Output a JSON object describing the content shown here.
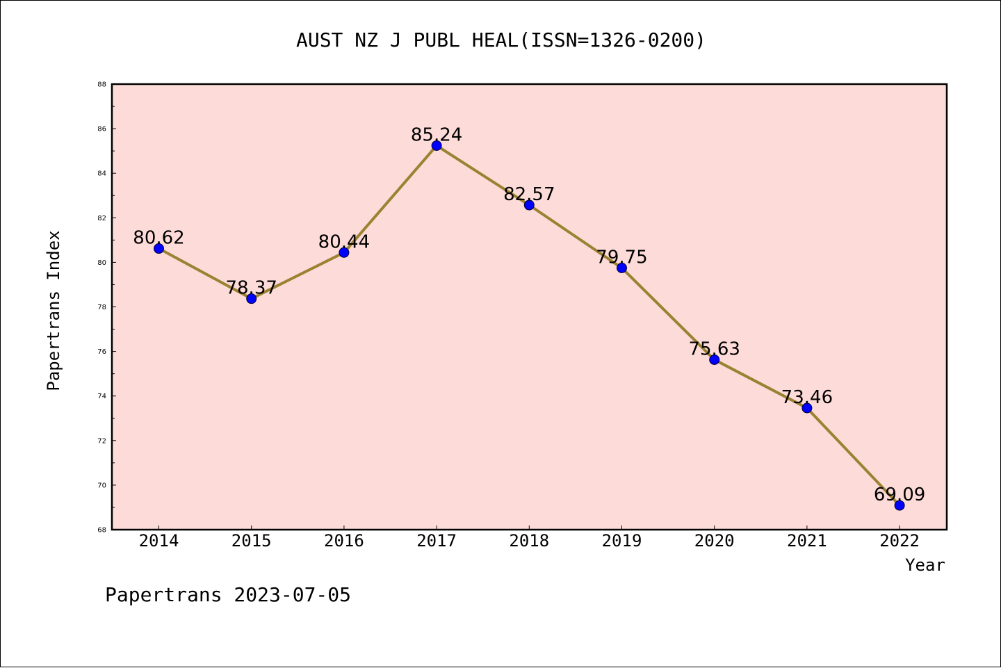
{
  "chart_data": {
    "type": "line",
    "title": "AUST NZ J PUBL HEAL(ISSN=1326-0200)",
    "xlabel": "Year",
    "ylabel": "Papertrans Index",
    "categories": [
      "2014",
      "2015",
      "2016",
      "2017",
      "2018",
      "2019",
      "2020",
      "2021",
      "2022"
    ],
    "values": [
      80.62,
      78.37,
      80.44,
      85.24,
      82.57,
      79.75,
      75.63,
      73.46,
      69.09
    ],
    "data_labels": [
      "80.62",
      "78.37",
      "80.44",
      "85.24",
      "82.57",
      "79.75",
      "75.63",
      "73.46",
      "69.09"
    ],
    "ylim": [
      68,
      88
    ],
    "yticks": [
      "68",
      "70",
      "72",
      "74",
      "76",
      "78",
      "80",
      "82",
      "84",
      "86",
      "88"
    ],
    "grid": false,
    "colors": {
      "plot_background": "#fddbd8",
      "line": "#9b8232",
      "marker": "#0000ff",
      "marker_edge": "#000033"
    }
  },
  "footer": "Papertrans 2023-07-05"
}
